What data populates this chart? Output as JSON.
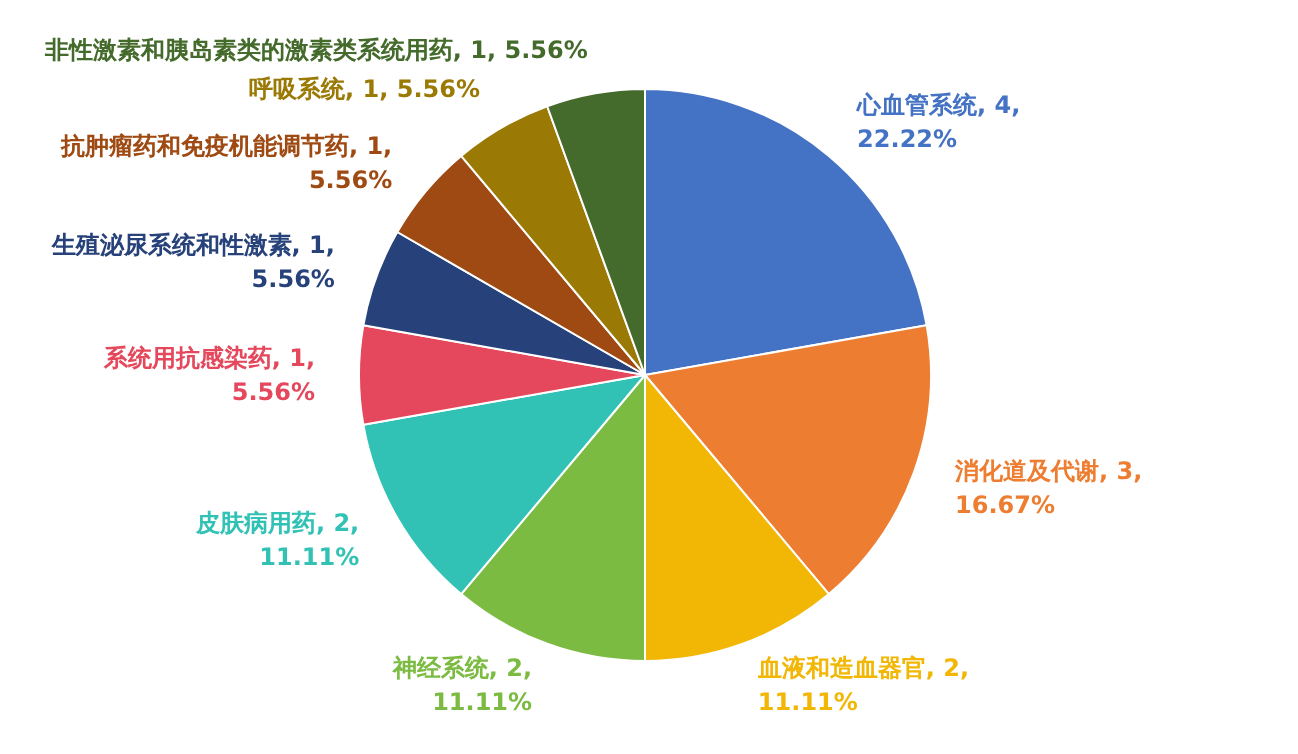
{
  "chart_data": {
    "type": "pie",
    "categories": [
      "心血管系统",
      "消化道及代谢",
      "血液和造血器官",
      "神经系统",
      "皮肤病用药",
      "系统用抗感染药",
      "生殖泌尿系统和性激素",
      "抗肿瘤药和免疫机能调节药",
      "呼吸系统",
      "非性激素和胰岛素类的激素类系统用药"
    ],
    "values": [
      4,
      3,
      2,
      2,
      2,
      1,
      1,
      1,
      1,
      1
    ],
    "value_labels": [
      "4, 22.22%",
      "3, 16.67%",
      "2, 11.11%",
      "2, 11.11%",
      "2, 11.11%",
      "1, 5.56%",
      "1, 5.56%",
      "1, 5.56%",
      "1, 5.56%",
      "1, 5.56%"
    ],
    "colors": [
      "#4472c4",
      "#ed7d31",
      "#f2b705",
      "#7cbb42",
      "#31c2b5",
      "#e5485c",
      "#27427a",
      "#9e4a12",
      "#9a7a05",
      "#456b2c"
    ]
  }
}
